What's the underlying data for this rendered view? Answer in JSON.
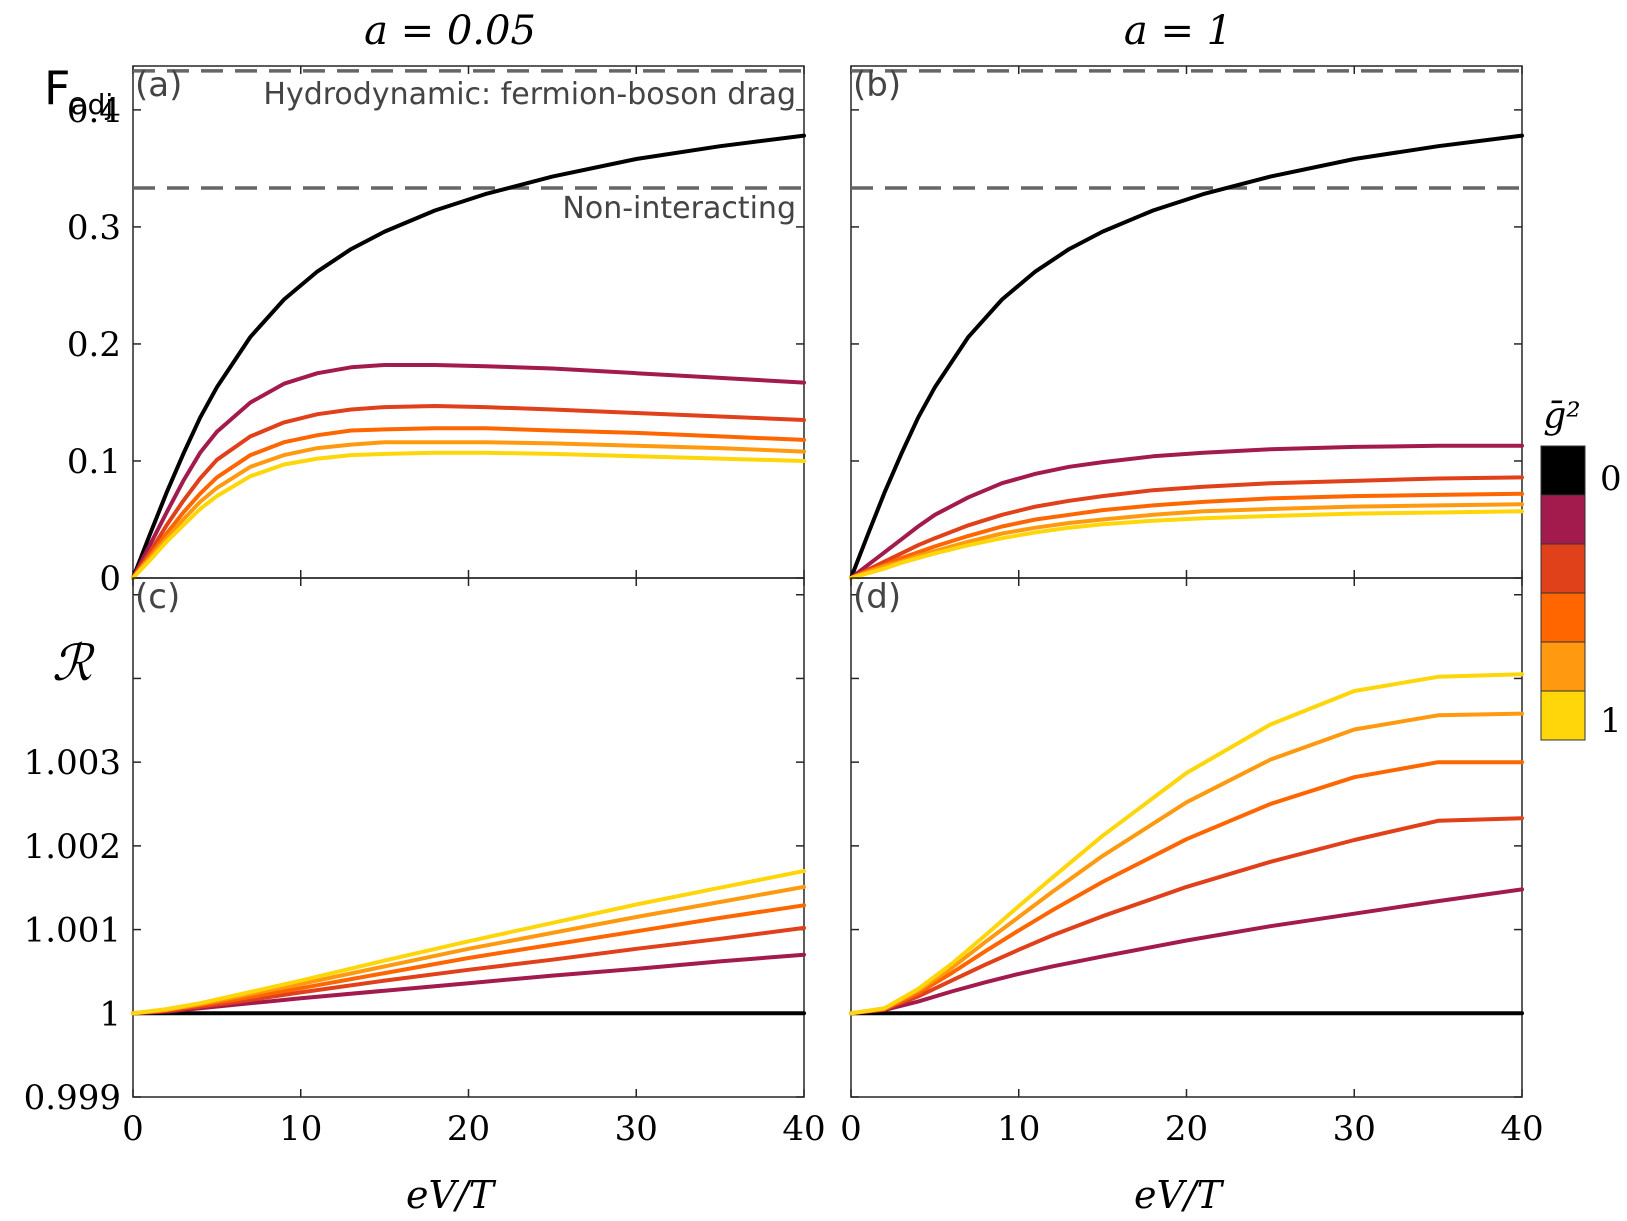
{
  "colors": {
    "series": [
      "#000000",
      "#a31a4d",
      "#e0401a",
      "#ff6600",
      "#ff9a10",
      "#ffd60a"
    ],
    "ref_line": "#666666",
    "axis": "#262626",
    "panel_label": "#444444"
  },
  "column_titles": [
    "a = 0.05",
    "a = 1"
  ],
  "row_labels": {
    "top": "F",
    "top_sub": "adj",
    "bottom": "ℛ"
  },
  "xlabel": "eV/T",
  "colorbar": {
    "title": "ḡ²",
    "min_label": "0",
    "max_label": "1"
  },
  "chart_data": [
    {
      "id": "a",
      "type": "line",
      "panel_label": "(a)",
      "xlim": [
        0,
        40
      ],
      "ylim": [
        0,
        0.4375
      ],
      "xticks": [
        0,
        10,
        20,
        30,
        40
      ],
      "xtick_labels": [
        "0",
        "10",
        "20",
        "30",
        "40"
      ],
      "yticks": [
        0,
        0.1,
        0.2,
        0.3,
        0.4
      ],
      "ytick_labels": [
        "0",
        "0.1",
        "0.2",
        "0.3",
        "0.4"
      ],
      "ref_lines": [
        {
          "y": 0.4333,
          "label": "Hydrodynamic: fermion-boson drag"
        },
        {
          "y": 0.3333,
          "label": "Non-interacting"
        }
      ],
      "x": [
        0,
        1,
        2,
        3,
        4,
        5,
        7,
        9,
        11,
        13,
        15,
        18,
        21,
        25,
        30,
        35,
        40
      ],
      "series": [
        {
          "name": "g²=0",
          "values": [
            0,
            0.037,
            0.073,
            0.106,
            0.137,
            0.163,
            0.206,
            0.238,
            0.262,
            0.281,
            0.296,
            0.314,
            0.328,
            0.343,
            0.358,
            0.369,
            0.378
          ]
        },
        {
          "name": "g²=0.2",
          "values": [
            0,
            0.028,
            0.056,
            0.083,
            0.107,
            0.125,
            0.15,
            0.166,
            0.175,
            0.18,
            0.182,
            0.182,
            0.181,
            0.179,
            0.175,
            0.171,
            0.167
          ]
        },
        {
          "name": "g²=0.4",
          "values": [
            0,
            0.022,
            0.045,
            0.066,
            0.085,
            0.101,
            0.121,
            0.133,
            0.14,
            0.144,
            0.146,
            0.147,
            0.146,
            0.144,
            0.141,
            0.138,
            0.135
          ]
        },
        {
          "name": "g²=0.6",
          "values": [
            0,
            0.019,
            0.038,
            0.056,
            0.072,
            0.086,
            0.105,
            0.116,
            0.122,
            0.126,
            0.127,
            0.128,
            0.128,
            0.126,
            0.124,
            0.121,
            0.118
          ]
        },
        {
          "name": "g²=0.8",
          "values": [
            0,
            0.017,
            0.034,
            0.05,
            0.065,
            0.077,
            0.095,
            0.105,
            0.111,
            0.114,
            0.116,
            0.116,
            0.116,
            0.115,
            0.113,
            0.111,
            0.108
          ]
        },
        {
          "name": "g²=1",
          "values": [
            0,
            0.015,
            0.031,
            0.045,
            0.059,
            0.07,
            0.087,
            0.097,
            0.102,
            0.105,
            0.106,
            0.107,
            0.107,
            0.106,
            0.104,
            0.102,
            0.1
          ]
        }
      ]
    },
    {
      "id": "b",
      "type": "line",
      "panel_label": "(b)",
      "xlim": [
        0,
        40
      ],
      "ylim": [
        0,
        0.4375
      ],
      "xticks": [
        0,
        10,
        20,
        30,
        40
      ],
      "xtick_labels": [
        "0",
        "10",
        "20",
        "30",
        "40"
      ],
      "yticks": [
        0,
        0.1,
        0.2,
        0.3,
        0.4
      ],
      "ytick_labels": [
        "",
        "",
        "",
        "",
        ""
      ],
      "ref_lines": [
        {
          "y": 0.4333,
          "label": ""
        },
        {
          "y": 0.3333,
          "label": ""
        }
      ],
      "x": [
        0,
        1,
        2,
        3,
        4,
        5,
        7,
        9,
        11,
        13,
        15,
        18,
        21,
        25,
        30,
        35,
        40
      ],
      "series": [
        {
          "name": "g²=0",
          "values": [
            0,
            0.037,
            0.073,
            0.106,
            0.137,
            0.163,
            0.206,
            0.238,
            0.262,
            0.281,
            0.296,
            0.314,
            0.328,
            0.343,
            0.358,
            0.369,
            0.378
          ]
        },
        {
          "name": "g²=0.2",
          "values": [
            0,
            0.011,
            0.022,
            0.033,
            0.044,
            0.054,
            0.069,
            0.081,
            0.089,
            0.095,
            0.099,
            0.104,
            0.107,
            0.11,
            0.112,
            0.113,
            0.113
          ]
        },
        {
          "name": "g²=0.4",
          "values": [
            0,
            0.007,
            0.014,
            0.021,
            0.028,
            0.034,
            0.045,
            0.054,
            0.061,
            0.066,
            0.07,
            0.075,
            0.078,
            0.081,
            0.083,
            0.085,
            0.086
          ]
        },
        {
          "name": "g²=0.6",
          "values": [
            0,
            0.006,
            0.011,
            0.017,
            0.022,
            0.027,
            0.036,
            0.044,
            0.05,
            0.054,
            0.058,
            0.062,
            0.065,
            0.068,
            0.07,
            0.071,
            0.072
          ]
        },
        {
          "name": "g²=0.8",
          "values": [
            0,
            0.005,
            0.01,
            0.014,
            0.019,
            0.023,
            0.031,
            0.038,
            0.043,
            0.047,
            0.05,
            0.054,
            0.057,
            0.059,
            0.061,
            0.062,
            0.063
          ]
        },
        {
          "name": "g²=1",
          "values": [
            0,
            0.004,
            0.008,
            0.013,
            0.017,
            0.021,
            0.028,
            0.034,
            0.039,
            0.043,
            0.046,
            0.049,
            0.051,
            0.053,
            0.055,
            0.056,
            0.057
          ]
        }
      ]
    },
    {
      "id": "c",
      "type": "line",
      "panel_label": "(c)",
      "xlim": [
        0,
        40
      ],
      "ylim": [
        0.999,
        1.0052
      ],
      "xticks": [
        0,
        10,
        20,
        30,
        40
      ],
      "xtick_labels": [
        "0",
        "10",
        "20",
        "30",
        "40"
      ],
      "yticks": [
        0.999,
        1,
        1.001,
        1.002,
        1.003,
        1.004,
        1.005
      ],
      "ytick_labels": [
        "0.999",
        "1",
        "1.001",
        "1.002",
        "1.003",
        "",
        ""
      ],
      "ref_lines": [],
      "x": [
        0,
        2,
        4,
        6,
        8,
        10,
        15,
        20,
        25,
        30,
        35,
        40
      ],
      "series": [
        {
          "name": "g²=0",
          "values": [
            1,
            1,
            1,
            1,
            1,
            1,
            1,
            1,
            1,
            1,
            1,
            1
          ]
        },
        {
          "name": "g²=0.2",
          "values": [
            1,
            1.00002,
            1.00006,
            1.0001,
            1.00014,
            1.00018,
            1.00027,
            1.00036,
            1.00045,
            1.00053,
            1.00062,
            1.0007
          ]
        },
        {
          "name": "g²=0.4",
          "values": [
            1,
            1.00003,
            1.00008,
            1.00013,
            1.00019,
            1.00025,
            1.00039,
            1.00052,
            1.00064,
            1.00077,
            1.00089,
            1.00102
          ]
        },
        {
          "name": "g²=0.6",
          "values": [
            1,
            1.00004,
            1.0001,
            1.00016,
            1.00023,
            1.0003,
            1.00048,
            1.00066,
            1.00082,
            1.00098,
            1.00114,
            1.00129
          ]
        },
        {
          "name": "g²=0.8",
          "values": [
            1,
            1.00004,
            1.00011,
            1.00019,
            1.00027,
            1.00035,
            1.00056,
            1.00077,
            1.00096,
            1.00115,
            1.00133,
            1.00151
          ]
        },
        {
          "name": "g²=1",
          "values": [
            1,
            1.00005,
            1.00012,
            1.00021,
            1.0003,
            1.00039,
            1.00063,
            1.00086,
            1.00108,
            1.0013,
            1.0015,
            1.0017
          ]
        }
      ]
    },
    {
      "id": "d",
      "type": "line",
      "panel_label": "(d)",
      "xlim": [
        0,
        40
      ],
      "ylim": [
        0.999,
        1.0052
      ],
      "xticks": [
        0,
        10,
        20,
        30,
        40
      ],
      "xtick_labels": [
        "0",
        "10",
        "20",
        "30",
        "40"
      ],
      "yticks": [
        0.999,
        1,
        1.001,
        1.002,
        1.003,
        1.004,
        1.005
      ],
      "ytick_labels": [
        "",
        "",
        "",
        "",
        "",
        "",
        ""
      ],
      "ref_lines": [],
      "x": [
        0,
        2,
        4,
        6,
        8,
        10,
        12,
        15,
        20,
        25,
        30,
        35,
        40
      ],
      "series": [
        {
          "name": "g²=0",
          "values": [
            1,
            1,
            1,
            1,
            1,
            1,
            1,
            1,
            1,
            1,
            1,
            1,
            1
          ]
        },
        {
          "name": "g²=0.2",
          "values": [
            1,
            1.00004,
            1.00014,
            1.00026,
            1.00037,
            1.00047,
            1.00056,
            1.00068,
            1.00087,
            1.00104,
            1.00119,
            1.00134,
            1.00148
          ]
        },
        {
          "name": "g²=0.4",
          "values": [
            1,
            1.00005,
            1.0002,
            1.00039,
            1.00058,
            1.00076,
            1.00093,
            1.00116,
            1.00151,
            1.00181,
            1.00207,
            1.0023,
            1.00233
          ]
        },
        {
          "name": "g²=0.6",
          "values": [
            1,
            1.00005,
            1.00024,
            1.00048,
            1.00074,
            1.00099,
            1.00123,
            1.00157,
            1.00208,
            1.0025,
            1.00282,
            1.003,
            1.003
          ]
        },
        {
          "name": "g²=0.8",
          "values": [
            1,
            1.00006,
            1.00027,
            1.00054,
            1.00085,
            1.00115,
            1.00145,
            1.00188,
            1.00252,
            1.00303,
            1.00339,
            1.00356,
            1.00358
          ]
        },
        {
          "name": "g²=1",
          "values": [
            1,
            1.00006,
            1.00029,
            1.00059,
            1.00093,
            1.00128,
            1.00162,
            1.00212,
            1.00287,
            1.00345,
            1.00385,
            1.00402,
            1.00405
          ]
        }
      ]
    }
  ]
}
